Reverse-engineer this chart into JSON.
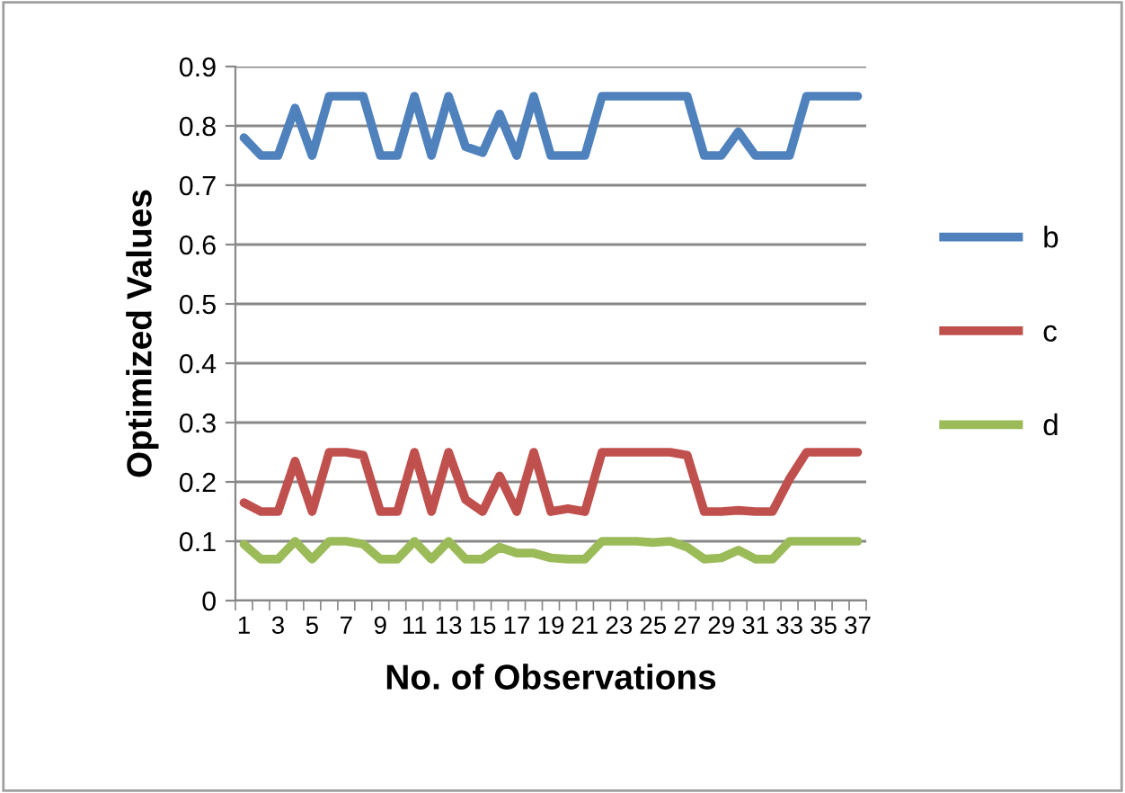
{
  "chart_data": {
    "type": "line",
    "xlabel": "No. of Observations",
    "ylabel": "Optimized Values",
    "categories": [
      "1",
      null,
      "3",
      null,
      "5",
      null,
      "7",
      null,
      "9",
      null,
      "11",
      null,
      "13",
      null,
      "15",
      null,
      "17",
      null,
      "19",
      null,
      "21",
      null,
      "23",
      null,
      "25",
      null,
      "27",
      null,
      "29",
      null,
      "31",
      null,
      "33",
      null,
      "35",
      null,
      "37"
    ],
    "series": [
      {
        "name": "b",
        "color": "#4f81bd",
        "values": [
          0.78,
          0.75,
          0.75,
          0.83,
          0.75,
          0.85,
          0.85,
          0.85,
          0.75,
          0.75,
          0.85,
          0.75,
          0.85,
          0.765,
          0.755,
          0.82,
          0.75,
          0.85,
          0.75,
          0.75,
          0.75,
          0.85,
          0.85,
          0.85,
          0.85,
          0.85,
          0.85,
          0.75,
          0.75,
          0.79,
          0.75,
          0.75,
          0.75,
          0.85,
          0.85,
          0.85,
          0.85
        ]
      },
      {
        "name": "c",
        "color": "#c0504d",
        "values": [
          0.165,
          0.15,
          0.15,
          0.235,
          0.15,
          0.25,
          0.25,
          0.245,
          0.15,
          0.15,
          0.25,
          0.15,
          0.25,
          0.17,
          0.15,
          0.21,
          0.15,
          0.25,
          0.15,
          0.155,
          0.15,
          0.25,
          0.25,
          0.25,
          0.25,
          0.25,
          0.245,
          0.15,
          0.15,
          0.152,
          0.15,
          0.15,
          0.205,
          0.25,
          0.25,
          0.25,
          0.25
        ]
      },
      {
        "name": "d",
        "color": "#9bbb59",
        "values": [
          0.095,
          0.07,
          0.07,
          0.1,
          0.07,
          0.1,
          0.1,
          0.095,
          0.07,
          0.07,
          0.1,
          0.07,
          0.1,
          0.07,
          0.07,
          0.09,
          0.08,
          0.08,
          0.072,
          0.07,
          0.07,
          0.1,
          0.1,
          0.1,
          0.098,
          0.1,
          0.09,
          0.07,
          0.072,
          0.085,
          0.07,
          0.07,
          0.1,
          0.1,
          0.1,
          0.1,
          0.1
        ]
      }
    ],
    "ylim": [
      0,
      0.9
    ],
    "yticks": [
      {
        "value": 0,
        "label": "0"
      },
      0.1,
      0.2,
      0.3,
      0.4,
      0.5,
      0.6,
      0.7,
      0.8,
      0.9
    ],
    "grid": "y",
    "legend": "right",
    "marker": "none",
    "line_style": "solid"
  }
}
